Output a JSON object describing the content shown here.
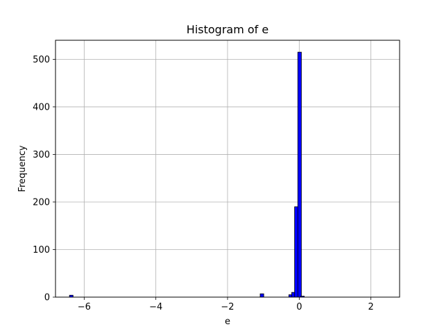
{
  "chart_data": {
    "type": "bar",
    "title": "Histogram of e",
    "xlabel": "e",
    "ylabel": "Frequency",
    "xlim": [
      -6.8,
      2.8
    ],
    "ylim": [
      0,
      540
    ],
    "grid": true,
    "bin_width": 0.1,
    "bar_color": "#0000ff",
    "edge_color": "#000000",
    "x_ticks": [
      -6,
      -4,
      -2,
      0,
      2
    ],
    "x_tick_labels": [
      "−6",
      "−4",
      "−2",
      "0",
      "2"
    ],
    "y_ticks": [
      0,
      100,
      200,
      300,
      400,
      500
    ],
    "y_tick_labels": [
      "0",
      "100",
      "200",
      "300",
      "400",
      "500"
    ],
    "bins": [
      {
        "x": -6.36,
        "y": 4
      },
      {
        "x": -1.04,
        "y": 7
      },
      {
        "x": -0.24,
        "y": 5
      },
      {
        "x": -0.16,
        "y": 10
      },
      {
        "x": -0.08,
        "y": 190
      },
      {
        "x": 0.01,
        "y": 515
      },
      {
        "x": 0.09,
        "y": 2
      }
    ]
  }
}
